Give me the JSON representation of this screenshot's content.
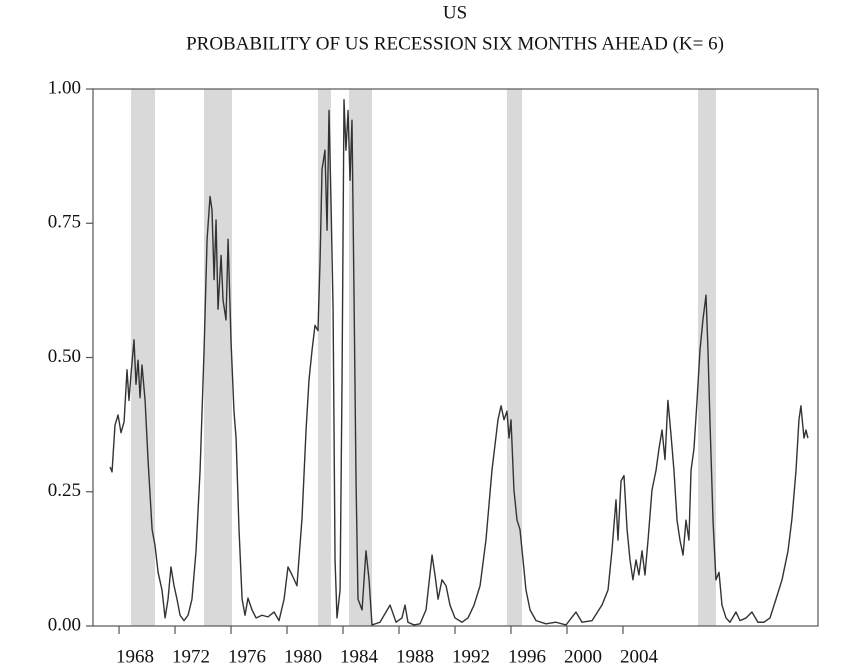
{
  "chart_data": {
    "type": "line",
    "title": "US",
    "subtitle": "PROBABILITY OF US RECESSION SIX MONTHS AHEAD (K= 6)",
    "color": "#333333",
    "shading_color": "#d9d9d9",
    "shaded_periods": [
      [
        1968.86,
        1970.57
      ],
      [
        1974.07,
        1976.07
      ],
      [
        1982.21,
        1983.14
      ],
      [
        1984.43,
        1986.07
      ],
      [
        1995.71,
        1996.79
      ],
      [
        2009.36,
        2010.64
      ]
    ],
    "xlim": [
      1966.14,
      2017.93
    ],
    "ylim": [
      0,
      1
    ],
    "xticks": [
      1968,
      1972,
      1976,
      1980,
      1984,
      1988,
      1992,
      1996,
      2000,
      2004
    ],
    "yticks": [
      {
        "value": 0,
        "label": "0.00"
      },
      0.25,
      {
        "value": 0.5,
        "label": "0.50"
      },
      0.75,
      {
        "value": 1,
        "label": "1.00"
      }
    ],
    "x": [
      1967.36,
      1967.5,
      1967.71,
      1967.93,
      1968.14,
      1968.36,
      1968.57,
      1968.71,
      1968.86,
      1969.07,
      1969.21,
      1969.36,
      1969.5,
      1969.64,
      1969.86,
      1970.07,
      1970.36,
      1970.57,
      1970.79,
      1971.07,
      1971.29,
      1971.5,
      1971.71,
      1971.93,
      1972.14,
      1972.36,
      1972.64,
      1972.93,
      1973.21,
      1973.5,
      1973.79,
      1974.07,
      1974.29,
      1974.5,
      1974.64,
      1974.79,
      1974.93,
      1975.07,
      1975.29,
      1975.43,
      1975.64,
      1975.79,
      1976,
      1976.21,
      1976.36,
      1976.57,
      1976.79,
      1977,
      1977.21,
      1977.5,
      1977.79,
      1978.21,
      1978.64,
      1979.07,
      1979.43,
      1979.79,
      1980.07,
      1980.36,
      1980.71,
      1981.07,
      1981.36,
      1981.57,
      1981.79,
      1982,
      1982.21,
      1982.36,
      1982.5,
      1982.71,
      1982.86,
      1983,
      1983.14,
      1983.29,
      1983.43,
      1983.57,
      1983.79,
      1983.93,
      1984.07,
      1984.21,
      1984.36,
      1984.5,
      1984.64,
      1984.79,
      1984.93,
      1985.07,
      1985.36,
      1985.64,
      1985.86,
      1986.07,
      1986.64,
      1987.07,
      1987.36,
      1987.79,
      1988.21,
      1988.43,
      1988.64,
      1989.07,
      1989.5,
      1989.93,
      1990.36,
      1990.57,
      1990.79,
      1991.07,
      1991.36,
      1991.64,
      1992,
      1992.5,
      1992.93,
      1993.36,
      1993.79,
      1994.21,
      1994.64,
      1995.07,
      1995.29,
      1995.5,
      1995.71,
      1995.86,
      1996,
      1996.21,
      1996.43,
      1996.64,
      1996.86,
      1997.07,
      1997.36,
      1997.79,
      1998.5,
      1999.21,
      1999.93,
      2000.64,
      2001.07,
      2001.79,
      2002.5,
      2002.93,
      2003.21,
      2003.5,
      2003.64,
      2003.86,
      2004.07,
      2004.29,
      2004.5,
      2004.71,
      2004.93,
      2005.14,
      2005.36,
      2005.57,
      2005.79,
      2006.07,
      2006.36,
      2006.57,
      2006.79,
      2007,
      2007.21,
      2007.43,
      2007.64,
      2007.86,
      2008.07,
      2008.29,
      2008.5,
      2008.71,
      2008.86,
      2009.07,
      2009.29,
      2009.5,
      2009.71,
      2009.93,
      2010.07,
      2010.21,
      2010.43,
      2010.64,
      2010.86,
      2011.07,
      2011.36,
      2011.64,
      2012.07,
      2012.36,
      2012.79,
      2013.21,
      2013.64,
      2014.07,
      2014.5,
      2014.93,
      2015.36,
      2015.79,
      2016.07,
      2016.36,
      2016.57,
      2016.71,
      2016.93,
      2017.07,
      2017.21
    ],
    "values": [
      0.296,
      0.287,
      0.374,
      0.393,
      0.36,
      0.38,
      0.477,
      0.42,
      0.47,
      0.533,
      0.45,
      0.495,
      0.425,
      0.486,
      0.42,
      0.31,
      0.18,
      0.15,
      0.1,
      0.067,
      0.015,
      0.05,
      0.11,
      0.075,
      0.05,
      0.02,
      0.01,
      0.02,
      0.05,
      0.14,
      0.29,
      0.51,
      0.72,
      0.8,
      0.775,
      0.645,
      0.756,
      0.59,
      0.69,
      0.607,
      0.57,
      0.72,
      0.53,
      0.4,
      0.35,
      0.18,
      0.05,
      0.02,
      0.052,
      0.03,
      0.015,
      0.02,
      0.017,
      0.026,
      0.01,
      0.05,
      0.11,
      0.095,
      0.075,
      0.2,
      0.365,
      0.458,
      0.514,
      0.56,
      0.55,
      0.68,
      0.85,
      0.886,
      0.737,
      0.96,
      0.793,
      0.59,
      0.123,
      0.015,
      0.067,
      0.458,
      0.98,
      0.886,
      0.96,
      0.83,
      0.942,
      0.607,
      0.27,
      0.05,
      0.03,
      0.14,
      0.086,
      0.002,
      0.007,
      0.026,
      0.039,
      0.007,
      0.015,
      0.039,
      0.007,
      0.002,
      0.004,
      0.03,
      0.132,
      0.095,
      0.05,
      0.086,
      0.075,
      0.039,
      0.015,
      0.007,
      0.015,
      0.039,
      0.075,
      0.16,
      0.29,
      0.384,
      0.41,
      0.384,
      0.4,
      0.35,
      0.384,
      0.253,
      0.197,
      0.18,
      0.123,
      0.067,
      0.03,
      0.01,
      0.004,
      0.007,
      0.002,
      0.026,
      0.007,
      0.01,
      0.039,
      0.067,
      0.14,
      0.235,
      0.16,
      0.27,
      0.28,
      0.18,
      0.123,
      0.086,
      0.123,
      0.095,
      0.14,
      0.095,
      0.16,
      0.253,
      0.29,
      0.33,
      0.365,
      0.31,
      0.42,
      0.356,
      0.29,
      0.197,
      0.16,
      0.132,
      0.197,
      0.16,
      0.29,
      0.33,
      0.42,
      0.514,
      0.57,
      0.616,
      0.514,
      0.384,
      0.197,
      0.086,
      0.1,
      0.039,
      0.015,
      0.007,
      0.026,
      0.01,
      0.015,
      0.026,
      0.007,
      0.007,
      0.015,
      0.05,
      0.086,
      0.14,
      0.2,
      0.29,
      0.384,
      0.41,
      0.35,
      0.365,
      0.35
    ]
  }
}
